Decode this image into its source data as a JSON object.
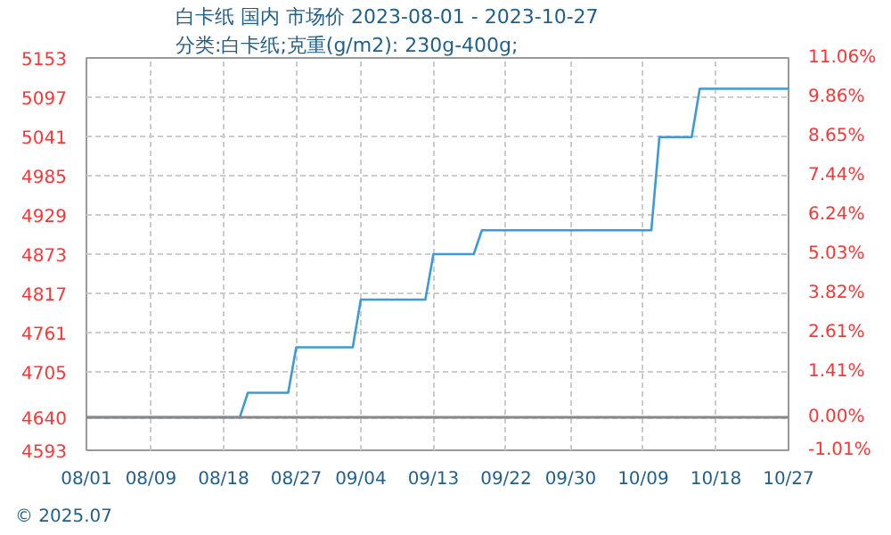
{
  "chart_data": {
    "type": "line",
    "title": "白卡纸 国内 市场价 2023-08-01 - 2023-10-27",
    "subtitle": "分类:白卡纸;克重(g/m2): 230g-400g;",
    "x": [
      "2023-08-01",
      "2023-08-20",
      "2023-08-21",
      "2023-08-26",
      "2023-08-27",
      "2023-09-03",
      "2023-09-04",
      "2023-09-12",
      "2023-09-13",
      "2023-09-18",
      "2023-09-19",
      "2023-10-10",
      "2023-10-11",
      "2023-10-15",
      "2023-10-16",
      "2023-10-27"
    ],
    "series": [
      {
        "color": "#3d9ad6",
        "values": [
          4640,
          4640,
          4675,
          4675,
          4740,
          4740,
          4808,
          4808,
          4873,
          4873,
          4907,
          4907,
          5040,
          5040,
          5109,
          5109
        ]
      }
    ],
    "xlim": [
      "2023-08-01",
      "2023-10-27"
    ],
    "xticks": [
      {
        "value": "2023-08-01",
        "label": "08/01"
      },
      {
        "value": "2023-08-09",
        "label": "08/09"
      },
      {
        "value": "2023-08-18",
        "label": "08/18"
      },
      {
        "value": "2023-08-27",
        "label": "08/27"
      },
      {
        "value": "2023-09-04",
        "label": "09/04"
      },
      {
        "value": "2023-09-13",
        "label": "09/13"
      },
      {
        "value": "2023-09-22",
        "label": "09/22"
      },
      {
        "value": "2023-09-30",
        "label": "09/30"
      },
      {
        "value": "2023-10-09",
        "label": "10/09"
      },
      {
        "value": "2023-10-18",
        "label": "10/18"
      },
      {
        "value": "2023-10-27",
        "label": "10/27"
      }
    ],
    "ylim": [
      4593,
      5153
    ],
    "yticks": [
      4593,
      4640,
      4705,
      4761,
      4817,
      4873,
      4929,
      4985,
      5041,
      5097,
      5153
    ],
    "y2lim": [
      -1.01,
      11.06
    ],
    "y2ticks": [
      {
        "value": -1.01,
        "label": "-1.01%"
      },
      {
        "value": 0,
        "label": "0.00%"
      },
      {
        "value": 1.41,
        "label": "1.41%"
      },
      {
        "value": 2.61,
        "label": "2.61%"
      },
      {
        "value": 3.82,
        "label": "3.82%"
      },
      {
        "value": 5.03,
        "label": "5.03%"
      },
      {
        "value": 6.24,
        "label": "6.24%"
      },
      {
        "value": 7.44,
        "label": "7.44%"
      },
      {
        "value": 8.65,
        "label": "8.65%"
      },
      {
        "value": 9.86,
        "label": "9.86%"
      },
      {
        "value": 11.06,
        "label": "11.06%"
      }
    ],
    "ref_lines": [
      {
        "axis": "y",
        "value": 4640,
        "color": "#888888"
      }
    ],
    "grid": true,
    "line_style": "solid",
    "marker": "none",
    "annotations": [
      "© 2025.07"
    ]
  }
}
